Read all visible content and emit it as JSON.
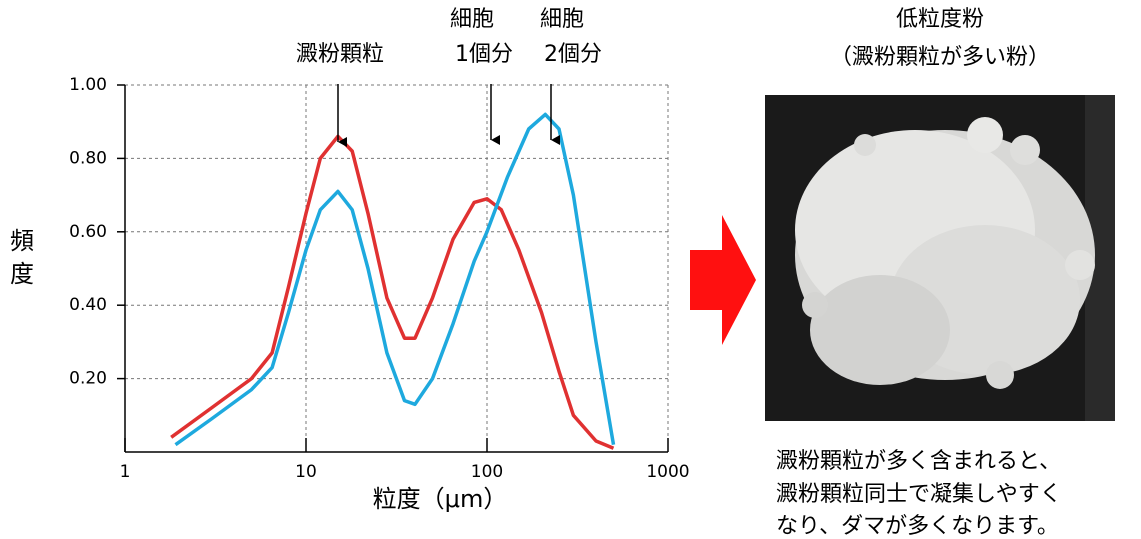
{
  "chart_data": {
    "type": "line",
    "xlabel": "粒度（μm）",
    "ylabel": [
      "頻",
      "度"
    ],
    "annotations": [
      "澱粉顆粒",
      "細胞",
      "1個分",
      "細胞",
      "2個分"
    ],
    "xscale": "log",
    "grid": true,
    "xlim": [
      1,
      1000
    ],
    "xticks": [
      1,
      10,
      100,
      1000
    ],
    "ylim": [
      0,
      1.0
    ],
    "yticks": [
      {
        "value": 0.2,
        "label": "0.20"
      },
      {
        "value": 0.4,
        "label": "0.40"
      },
      {
        "value": 0.6,
        "label": "0.60"
      },
      {
        "value": 0.8,
        "label": "0.80"
      },
      {
        "value": 1.0,
        "label": "1.00"
      }
    ],
    "series": [
      {
        "color": "#e03131",
        "x": [
          1.8,
          3,
          5,
          6.5,
          8,
          10,
          12,
          15,
          18,
          22,
          28,
          35,
          40,
          50,
          65,
          85,
          100,
          120,
          150,
          200,
          250,
          300,
          400,
          500
        ],
        "values": [
          0.04,
          0.12,
          0.2,
          0.27,
          0.45,
          0.65,
          0.8,
          0.86,
          0.82,
          0.65,
          0.42,
          0.31,
          0.31,
          0.42,
          0.58,
          0.68,
          0.69,
          0.66,
          0.55,
          0.38,
          0.22,
          0.1,
          0.03,
          0.01
        ]
      },
      {
        "color": "#1ea9de",
        "x": [
          1.9,
          3,
          5,
          6.5,
          8,
          10,
          12,
          15,
          18,
          22,
          28,
          35,
          40,
          50,
          65,
          85,
          100,
          130,
          170,
          210,
          250,
          300,
          400,
          500
        ],
        "values": [
          0.02,
          0.09,
          0.17,
          0.23,
          0.38,
          0.55,
          0.66,
          0.71,
          0.66,
          0.5,
          0.27,
          0.14,
          0.13,
          0.2,
          0.35,
          0.52,
          0.6,
          0.75,
          0.88,
          0.92,
          0.88,
          0.7,
          0.3,
          0.02
        ]
      }
    ]
  },
  "photo": {
    "title": [
      "低粒度粉",
      "（澱粉顆粒が多い粉）"
    ],
    "caption": [
      "澱粉顆粒が多く含まれると、",
      "澱粉顆粒同士で凝集しやすく",
      "なり、ダマが多くなります。"
    ]
  }
}
